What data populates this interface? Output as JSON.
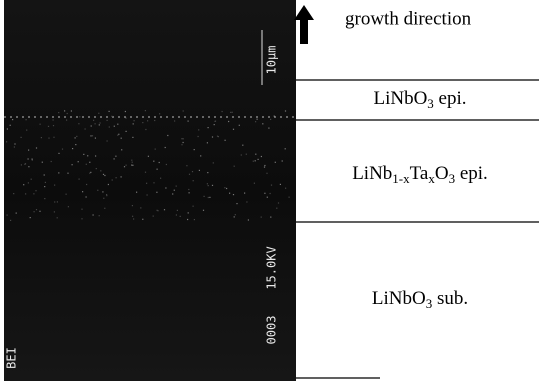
{
  "image": {
    "scale_label": "10μm",
    "voltage_label": "15.0KV",
    "frame_label": "0003",
    "mode_label": "BEI"
  },
  "arrow_label": "growth direction",
  "layers": [
    {
      "parts": [
        "LiNbO",
        "3",
        " epi."
      ]
    },
    {
      "parts": [
        "LiNb",
        "1-x",
        "Ta",
        "x",
        "O",
        "3",
        " epi."
      ]
    },
    {
      "parts": [
        "LiNbO",
        "3",
        " sub."
      ]
    }
  ]
}
